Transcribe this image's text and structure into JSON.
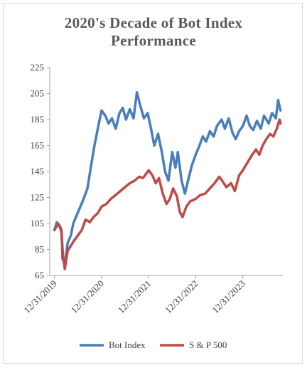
{
  "chart_data": {
    "type": "line",
    "title_lines": [
      "2020's Decade of Bot Index",
      "Performance"
    ],
    "xlabel": "",
    "ylabel": "",
    "ylim": [
      65,
      225
    ],
    "y_ticks": [
      65,
      85,
      105,
      125,
      145,
      165,
      185,
      205,
      225
    ],
    "x_ticks": [
      "12/31/2019",
      "12/31/2020",
      "12/31/2021",
      "12/31/2022",
      "12/31/2023"
    ],
    "x_range": [
      2019.9,
      2024.85
    ],
    "grid": false,
    "legend_position": "bottom",
    "series": [
      {
        "name": "Bot Index",
        "color": "#4a7ebb",
        "points": [
          [
            2020.0,
            100
          ],
          [
            2020.05,
            106
          ],
          [
            2020.1,
            104
          ],
          [
            2020.15,
            100
          ],
          [
            2020.17,
            78
          ],
          [
            2020.22,
            74
          ],
          [
            2020.28,
            90
          ],
          [
            2020.35,
            96
          ],
          [
            2020.4,
            105
          ],
          [
            2020.48,
            112
          ],
          [
            2020.55,
            118
          ],
          [
            2020.62,
            124
          ],
          [
            2020.7,
            132
          ],
          [
            2020.78,
            150
          ],
          [
            2020.85,
            165
          ],
          [
            2020.92,
            178
          ],
          [
            2021.0,
            192
          ],
          [
            2021.08,
            188
          ],
          [
            2021.15,
            182
          ],
          [
            2021.22,
            186
          ],
          [
            2021.3,
            178
          ],
          [
            2021.38,
            190
          ],
          [
            2021.45,
            194
          ],
          [
            2021.52,
            185
          ],
          [
            2021.6,
            193
          ],
          [
            2021.68,
            186
          ],
          [
            2021.75,
            206
          ],
          [
            2021.82,
            196
          ],
          [
            2021.9,
            186
          ],
          [
            2021.98,
            190
          ],
          [
            2022.05,
            178
          ],
          [
            2022.12,
            165
          ],
          [
            2022.2,
            174
          ],
          [
            2022.28,
            160
          ],
          [
            2022.35,
            145
          ],
          [
            2022.42,
            138
          ],
          [
            2022.5,
            160
          ],
          [
            2022.57,
            148
          ],
          [
            2022.62,
            160
          ],
          [
            2022.7,
            138
          ],
          [
            2022.77,
            128
          ],
          [
            2022.85,
            140
          ],
          [
            2022.92,
            150
          ],
          [
            2023.0,
            158
          ],
          [
            2023.08,
            165
          ],
          [
            2023.15,
            172
          ],
          [
            2023.22,
            168
          ],
          [
            2023.3,
            176
          ],
          [
            2023.38,
            172
          ],
          [
            2023.45,
            180
          ],
          [
            2023.55,
            185
          ],
          [
            2023.62,
            178
          ],
          [
            2023.7,
            186
          ],
          [
            2023.78,
            175
          ],
          [
            2023.85,
            170
          ],
          [
            2023.92,
            176
          ],
          [
            2024.0,
            180
          ],
          [
            2024.08,
            188
          ],
          [
            2024.15,
            180
          ],
          [
            2024.22,
            177
          ],
          [
            2024.3,
            184
          ],
          [
            2024.38,
            178
          ],
          [
            2024.45,
            188
          ],
          [
            2024.55,
            182
          ],
          [
            2024.62,
            190
          ],
          [
            2024.7,
            186
          ],
          [
            2024.75,
            200
          ],
          [
            2024.8,
            192
          ]
        ]
      },
      {
        "name": "S & P 500",
        "color": "#be4b48",
        "points": [
          [
            2020.0,
            100
          ],
          [
            2020.05,
            103
          ],
          [
            2020.1,
            104
          ],
          [
            2020.15,
            98
          ],
          [
            2020.18,
            80
          ],
          [
            2020.22,
            70
          ],
          [
            2020.28,
            84
          ],
          [
            2020.35,
            88
          ],
          [
            2020.42,
            92
          ],
          [
            2020.5,
            96
          ],
          [
            2020.58,
            100
          ],
          [
            2020.66,
            108
          ],
          [
            2020.75,
            106
          ],
          [
            2020.83,
            110
          ],
          [
            2020.92,
            113
          ],
          [
            2021.0,
            118
          ],
          [
            2021.1,
            120
          ],
          [
            2021.2,
            124
          ],
          [
            2021.3,
            127
          ],
          [
            2021.4,
            130
          ],
          [
            2021.5,
            133
          ],
          [
            2021.6,
            136
          ],
          [
            2021.7,
            138
          ],
          [
            2021.8,
            141
          ],
          [
            2021.88,
            140
          ],
          [
            2022.0,
            146
          ],
          [
            2022.08,
            142
          ],
          [
            2022.15,
            136
          ],
          [
            2022.22,
            140
          ],
          [
            2022.3,
            128
          ],
          [
            2022.38,
            120
          ],
          [
            2022.45,
            124
          ],
          [
            2022.52,
            132
          ],
          [
            2022.6,
            126
          ],
          [
            2022.66,
            114
          ],
          [
            2022.72,
            110
          ],
          [
            2022.8,
            118
          ],
          [
            2022.88,
            122
          ],
          [
            2023.0,
            124
          ],
          [
            2023.1,
            127
          ],
          [
            2023.2,
            128
          ],
          [
            2023.3,
            132
          ],
          [
            2023.4,
            136
          ],
          [
            2023.5,
            141
          ],
          [
            2023.58,
            137
          ],
          [
            2023.65,
            133
          ],
          [
            2023.75,
            136
          ],
          [
            2023.83,
            130
          ],
          [
            2023.92,
            142
          ],
          [
            2024.0,
            146
          ],
          [
            2024.1,
            152
          ],
          [
            2024.2,
            158
          ],
          [
            2024.28,
            162
          ],
          [
            2024.35,
            158
          ],
          [
            2024.42,
            165
          ],
          [
            2024.5,
            170
          ],
          [
            2024.58,
            174
          ],
          [
            2024.65,
            172
          ],
          [
            2024.72,
            178
          ],
          [
            2024.78,
            185
          ],
          [
            2024.8,
            182
          ]
        ]
      }
    ]
  }
}
